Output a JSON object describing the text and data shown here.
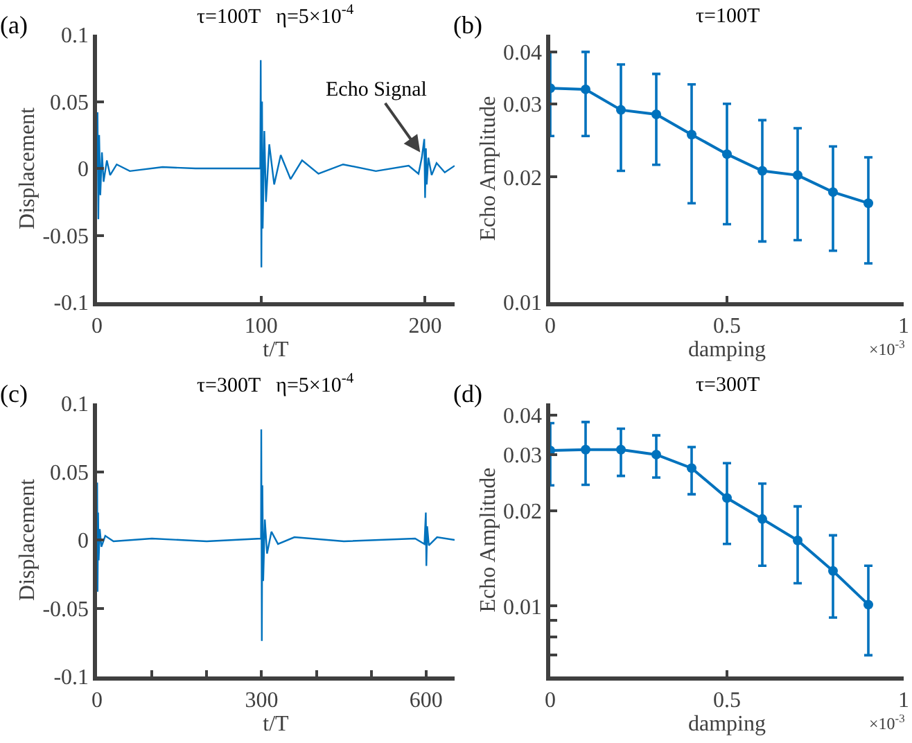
{
  "chart_data": [
    {
      "type": "line",
      "title": "τ=100T   η=5×10$^{-4}$",
      "xlabel": "t/T",
      "ylabel": "Displacement",
      "annotations": [
        "(a)",
        {
          "text": "Echo Signal",
          "x": 197,
          "y": 0.012
        }
      ],
      "x": [
        0,
        0.3,
        0.8,
        1.3,
        2,
        3,
        4,
        6,
        8,
        12,
        20,
        40,
        60,
        99.5,
        99.8,
        100.2,
        100.6,
        101,
        102,
        103,
        105,
        108,
        112,
        118,
        125,
        135,
        150,
        170,
        190,
        196,
        198,
        199.5,
        200,
        200.5,
        201,
        202,
        204,
        207,
        212,
        218
      ],
      "series": [
        {
          "color": "#0072bd",
          "values": [
            0,
            0.042,
            -0.038,
            0.025,
            -0.02,
            0.012,
            -0.01,
            0.006,
            -0.005,
            0.003,
            -0.002,
            0.001,
            0,
            0,
            0.081,
            -0.074,
            0.05,
            -0.045,
            0.028,
            -0.025,
            0.018,
            -0.012,
            0.01,
            -0.008,
            0.006,
            -0.004,
            0.003,
            -0.002,
            0.002,
            -0.004,
            0.008,
            0.022,
            -0.022,
            0.015,
            -0.012,
            0.008,
            -0.005,
            0.004,
            -0.003,
            0.002
          ]
        }
      ],
      "xlim": [
        0,
        218
      ],
      "xticks": [
        0,
        100,
        200
      ],
      "ylim": [
        -0.1,
        0.1
      ],
      "yticks": [
        -0.1,
        -0.05,
        0,
        0.05,
        0.1
      ],
      "marker": "none",
      "line_style": "solid"
    },
    {
      "type": "line",
      "title": "τ=100T",
      "xlabel": "damping",
      "ylabel": "Echo Amplitude",
      "annotations": [
        "(b)",
        "×10$^{-3}$"
      ],
      "x": [
        0,
        0.1,
        0.2,
        0.3,
        0.4,
        0.5,
        0.6,
        0.7,
        0.8,
        0.9
      ],
      "series": [
        {
          "color": "#0072bd",
          "values": [
            0.0327,
            0.0325,
            0.029,
            0.0283,
            0.0253,
            0.0227,
            0.0207,
            0.0202,
            0.0184,
            0.0173
          ],
          "errors": [
            [
              0.0251,
              0.04
            ],
            [
              0.0251,
              0.04
            ],
            [
              0.0207,
              0.0373
            ],
            [
              0.0214,
              0.0354
            ],
            [
              0.0173,
              0.0334
            ],
            [
              0.0154,
              0.03
            ],
            [
              0.014,
              0.0274
            ],
            [
              0.0141,
              0.0262
            ],
            [
              0.0133,
              0.0237
            ],
            [
              0.0124,
              0.0223
            ]
          ]
        }
      ],
      "xlim": [
        0,
        1
      ],
      "xticks": [
        0,
        0.5,
        1
      ],
      "ylim": [
        0.01,
        0.044
      ],
      "yticks": [
        0.01,
        0.02,
        0.03,
        0.04
      ],
      "log": "y",
      "marker": "circle",
      "line_style": "solid"
    },
    {
      "type": "line",
      "title": "τ=300T   η=5×10$^{-4}$",
      "xlabel": "t/T",
      "ylabel": "Displacement",
      "annotations": [
        "(c)"
      ],
      "x": [
        0,
        0.3,
        1,
        2,
        3,
        5,
        8,
        15,
        30,
        100,
        200,
        299,
        299.5,
        300.5,
        301.5,
        303,
        306,
        310,
        318,
        330,
        360,
        450,
        580,
        597,
        599.5,
        600.5,
        602,
        605,
        620,
        652
      ],
      "series": [
        {
          "color": "#0072bd",
          "values": [
            0,
            0.042,
            -0.038,
            0.02,
            -0.015,
            0.008,
            -0.005,
            0.003,
            -0.001,
            0.001,
            -0.001,
            0.001,
            0.081,
            -0.074,
            0.04,
            -0.03,
            0.015,
            -0.01,
            0.006,
            -0.003,
            0.002,
            -0.001,
            0.001,
            -0.003,
            0.02,
            -0.019,
            0.01,
            -0.004,
            0.002,
            0
          ]
        }
      ],
      "xlim": [
        0,
        652
      ],
      "xticks": [
        0,
        {
          "value": 100,
          "label": null
        },
        {
          "value": 200,
          "label": null
        },
        300,
        {
          "value": 400,
          "label": null
        },
        {
          "value": 500,
          "label": null
        },
        600
      ],
      "ylim": [
        -0.1,
        0.1
      ],
      "yticks": [
        -0.1,
        -0.05,
        0,
        0.05,
        0.1
      ],
      "marker": "none",
      "line_style": "solid"
    },
    {
      "type": "line",
      "title": "τ=300T",
      "xlabel": "damping",
      "ylabel": "Echo Amplitude",
      "annotations": [
        "(d)",
        "×10$^{-3}$"
      ],
      "x": [
        0,
        0.1,
        0.2,
        0.3,
        0.4,
        0.5,
        0.6,
        0.7,
        0.8,
        0.9
      ],
      "series": [
        {
          "color": "#0072bd",
          "values": [
            0.0309,
            0.0311,
            0.0311,
            0.03,
            0.0272,
            0.0219,
            0.0188,
            0.0161,
            0.0129,
            0.0101
          ],
          "errors": [
            [
              0.024,
              0.0377
            ],
            [
              0.0241,
              0.038
            ],
            [
              0.0257,
              0.0362
            ],
            [
              0.0254,
              0.0345
            ],
            [
              0.0225,
              0.0317
            ],
            [
              0.0157,
              0.0282
            ],
            [
              0.0134,
              0.0243
            ],
            [
              0.0118,
              0.0206
            ],
            [
              0.0092,
              0.0167
            ],
            [
              0.007,
              0.0134
            ]
          ]
        }
      ],
      "xlim": [
        0,
        1
      ],
      "xticks": [
        0,
        0.5,
        1
      ],
      "ylim": [
        0.006,
        0.0435
      ],
      "yticks": [
        {
          "value": 0.007,
          "label": null
        },
        {
          "value": 0.008,
          "label": null
        },
        {
          "value": 0.009,
          "label": null
        },
        0.01,
        0.02,
        0.03,
        0.04
      ],
      "log": "y",
      "marker": "circle",
      "line_style": "solid"
    }
  ]
}
